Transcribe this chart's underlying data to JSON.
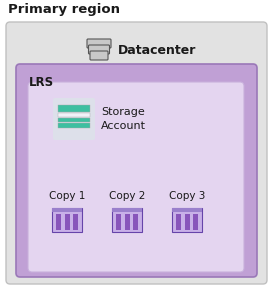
{
  "title": "Primary region",
  "title_fontsize": 9.5,
  "title_fontweight": "bold",
  "outer_bg": "#cce5f5",
  "title_bg": "#ffffff",
  "datacenter_box_bg": "#e2e2e2",
  "datacenter_box_edge": "#c0c0c0",
  "lrs_box_bg": "#c0a0d5",
  "lrs_box_edge": "#9a78b8",
  "inner_box_bg": "#e4d5f0",
  "inner_box_edge": "#c8b0dc",
  "lrs_label": "LRS",
  "lrs_fontsize": 8.5,
  "datacenter_label": "Datacenter",
  "datacenter_fontsize": 9,
  "storage_label": "Storage\nAccount",
  "storage_fontsize": 8,
  "copies": [
    "Copy 1",
    "Copy 2",
    "Copy 3"
  ],
  "copy_fontsize": 7.5,
  "storage_bar_colors": [
    "#3dbfa0",
    "#3dbfa0",
    "#e8eaf0",
    "#3dbfa0",
    "#3dbfa0"
  ],
  "storage_bar_heights": [
    6,
    5,
    5,
    5,
    6
  ],
  "storage_icon_bg": "#dde0ea",
  "copy_icon_color": "#8855bb",
  "copy_icon_light": "#c8b0e8",
  "copy_icon_edge": "#6644aa"
}
